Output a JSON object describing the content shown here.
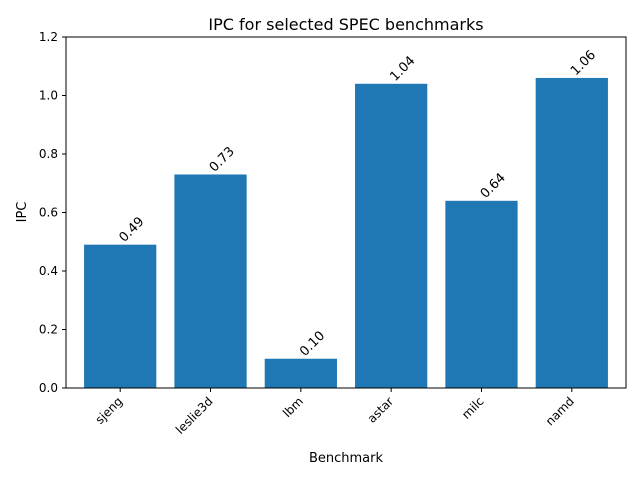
{
  "chart_data": {
    "type": "bar",
    "title": "IPC for selected SPEC benchmarks",
    "xlabel": "Benchmark",
    "ylabel": "IPC",
    "categories": [
      "sjeng",
      "leslie3d",
      "lbm",
      "astar",
      "milc",
      "namd"
    ],
    "values": [
      0.49,
      0.73,
      0.1,
      1.04,
      0.64,
      1.06
    ],
    "value_labels": [
      "0.49",
      "0.73",
      "0.10",
      "1.04",
      "0.64",
      "1.06"
    ],
    "ylim": [
      0,
      1.2
    ],
    "yticks": [
      0.0,
      0.2,
      0.4,
      0.6,
      0.8,
      1.0,
      1.2
    ],
    "ytick_labels": [
      "0.0",
      "0.2",
      "0.4",
      "0.6",
      "0.8",
      "1.0",
      "1.2"
    ],
    "grid": false,
    "bar_color": "#1f77b4"
  }
}
